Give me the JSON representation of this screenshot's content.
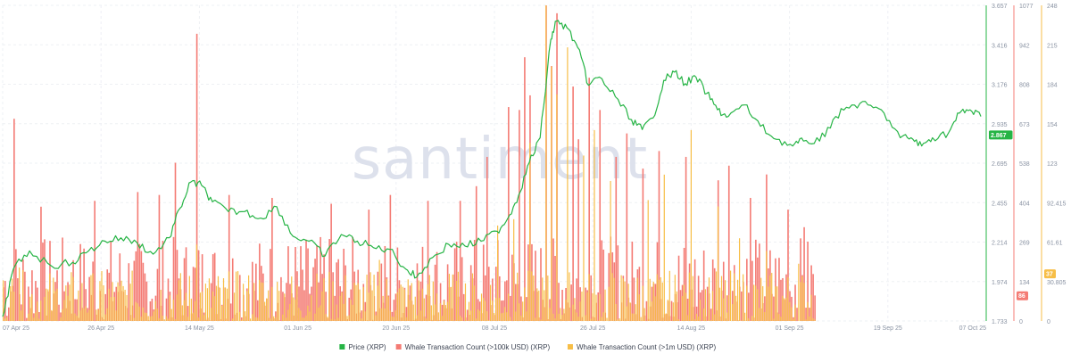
{
  "watermark": "santiment",
  "colors": {
    "price": "#26b445",
    "whale100k": "#f47b74",
    "whale1m": "#f7be47",
    "grid": "#eef0f4"
  },
  "chart_data": {
    "type": "bar+line",
    "x_range": [
      "2025-04-07",
      "2025-10-07"
    ],
    "x_ticks": [
      "07 Apr 25",
      "26 Apr 25",
      "14 May 25",
      "01 Jun 25",
      "20 Jun 25",
      "08 Jul 25",
      "26 Jul 25",
      "14 Aug 25",
      "01 Sep 25",
      "19 Sep 25",
      "07 Oct 25"
    ],
    "legend_position": "bottom-center",
    "grid": true,
    "axes": {
      "price": {
        "ticks": [
          "3.657",
          "3.416",
          "3.176",
          "2.935",
          "2.695",
          "2.455",
          "2.214",
          "1.974",
          "1.733"
        ],
        "range": [
          1.733,
          3.657
        ],
        "current_badge": "2.867"
      },
      "whale100k": {
        "ticks": [
          "1077",
          "942",
          "808",
          "673",
          "538",
          "404",
          "269",
          "134",
          "0"
        ],
        "range": [
          0,
          1077
        ],
        "current_badge": "86"
      },
      "whale1m": {
        "ticks": [
          "248",
          "215",
          "184",
          "154",
          "123",
          "92.415",
          "61.61",
          "30.805",
          "0"
        ],
        "range": [
          0,
          248
        ],
        "current_badge": "37"
      }
    },
    "series": [
      {
        "name": "Price (XRP)",
        "kind": "line",
        "axis": "price",
        "points": [
          [
            "2025-04-07",
            1.76
          ],
          [
            "2025-04-09",
            2.05
          ],
          [
            "2025-04-12",
            2.16
          ],
          [
            "2025-04-16",
            2.07
          ],
          [
            "2025-04-20",
            2.09
          ],
          [
            "2025-04-23",
            2.16
          ],
          [
            "2025-04-26",
            2.22
          ],
          [
            "2025-04-29",
            2.24
          ],
          [
            "2025-05-02",
            2.21
          ],
          [
            "2025-05-05",
            2.14
          ],
          [
            "2025-05-08",
            2.24
          ],
          [
            "2025-05-10",
            2.42
          ],
          [
            "2025-05-12",
            2.58
          ],
          [
            "2025-05-14",
            2.56
          ],
          [
            "2025-05-16",
            2.46
          ],
          [
            "2025-05-19",
            2.4
          ],
          [
            "2025-05-22",
            2.4
          ],
          [
            "2025-05-25",
            2.36
          ],
          [
            "2025-05-28",
            2.43
          ],
          [
            "2025-05-31",
            2.25
          ],
          [
            "2025-06-03",
            2.22
          ],
          [
            "2025-06-06",
            2.13
          ],
          [
            "2025-06-09",
            2.26
          ],
          [
            "2025-06-12",
            2.22
          ],
          [
            "2025-06-15",
            2.18
          ],
          [
            "2025-06-18",
            2.17
          ],
          [
            "2025-06-21",
            2.05
          ],
          [
            "2025-06-23",
            2.0
          ],
          [
            "2025-06-26",
            2.12
          ],
          [
            "2025-06-29",
            2.2
          ],
          [
            "2025-07-02",
            2.19
          ],
          [
            "2025-07-05",
            2.22
          ],
          [
            "2025-07-08",
            2.28
          ],
          [
            "2025-07-10",
            2.36
          ],
          [
            "2025-07-12",
            2.5
          ],
          [
            "2025-07-14",
            2.7
          ],
          [
            "2025-07-16",
            2.85
          ],
          [
            "2025-07-18",
            3.45
          ],
          [
            "2025-07-19",
            3.56
          ],
          [
            "2025-07-21",
            3.52
          ],
          [
            "2025-07-23",
            3.4
          ],
          [
            "2025-07-25",
            3.17
          ],
          [
            "2025-07-27",
            3.22
          ],
          [
            "2025-07-30",
            3.1
          ],
          [
            "2025-08-02",
            2.96
          ],
          [
            "2025-08-04",
            2.9
          ],
          [
            "2025-08-06",
            2.97
          ],
          [
            "2025-08-08",
            3.2
          ],
          [
            "2025-08-10",
            3.25
          ],
          [
            "2025-08-12",
            3.18
          ],
          [
            "2025-08-14",
            3.22
          ],
          [
            "2025-08-16",
            3.12
          ],
          [
            "2025-08-18",
            3.02
          ],
          [
            "2025-08-20",
            2.98
          ],
          [
            "2025-08-23",
            3.05
          ],
          [
            "2025-08-26",
            2.92
          ],
          [
            "2025-08-29",
            2.84
          ],
          [
            "2025-09-01",
            2.8
          ],
          [
            "2025-09-03",
            2.83
          ],
          [
            "2025-09-06",
            2.83
          ],
          [
            "2025-09-09",
            2.98
          ],
          [
            "2025-09-12",
            3.05
          ],
          [
            "2025-09-15",
            3.05
          ],
          [
            "2025-09-18",
            3.0
          ],
          [
            "2025-09-21",
            2.85
          ],
          [
            "2025-09-23",
            2.85
          ],
          [
            "2025-09-25",
            2.8
          ],
          [
            "2025-09-27",
            2.85
          ],
          [
            "2025-09-30",
            2.88
          ],
          [
            "2025-10-02",
            3.0
          ],
          [
            "2025-10-04",
            3.02
          ],
          [
            "2025-10-06",
            2.98
          ]
        ]
      },
      {
        "name": "Whale Transaction Count (>100k USD) (XRP)",
        "kind": "bar",
        "axis": "whale100k",
        "data_end": "2025-09-05",
        "baseline_range": [
          0,
          290
        ],
        "spikes": [
          [
            "2025-04-09",
            690
          ],
          [
            "2025-04-14",
            390
          ],
          [
            "2025-04-24",
            410
          ],
          [
            "2025-05-02",
            440
          ],
          [
            "2025-05-06",
            430
          ],
          [
            "2025-05-09",
            540
          ],
          [
            "2025-05-13",
            980
          ],
          [
            "2025-05-19",
            430
          ],
          [
            "2025-05-27",
            420
          ],
          [
            "2025-06-07",
            400
          ],
          [
            "2025-06-14",
            380
          ],
          [
            "2025-06-18",
            430
          ],
          [
            "2025-06-25",
            410
          ],
          [
            "2025-07-01",
            410
          ],
          [
            "2025-07-04",
            460
          ],
          [
            "2025-07-06",
            560
          ],
          [
            "2025-07-10",
            730
          ],
          [
            "2025-07-12",
            720
          ],
          [
            "2025-07-13",
            900
          ],
          [
            "2025-07-14",
            770
          ],
          [
            "2025-07-17",
            1077
          ],
          [
            "2025-07-18",
            870
          ],
          [
            "2025-07-19",
            1050
          ],
          [
            "2025-07-22",
            800
          ],
          [
            "2025-07-23",
            620
          ],
          [
            "2025-07-25",
            830
          ],
          [
            "2025-07-27",
            720
          ],
          [
            "2025-07-30",
            560
          ],
          [
            "2025-08-01",
            640
          ],
          [
            "2025-08-04",
            520
          ],
          [
            "2025-08-07",
            580
          ],
          [
            "2025-08-12",
            560
          ],
          [
            "2025-08-18",
            480
          ],
          [
            "2025-08-20",
            530
          ],
          [
            "2025-08-24",
            420
          ],
          [
            "2025-08-27",
            500
          ],
          [
            "2025-08-31",
            380
          ],
          [
            "2025-09-03",
            320
          ]
        ]
      },
      {
        "name": "Whale Transaction Count (>1m USD) (XRP)",
        "kind": "bar",
        "axis": "whale1m",
        "data_end": "2025-09-05",
        "baseline_range": [
          0,
          40
        ],
        "spikes": [
          [
            "2025-04-10",
            42
          ],
          [
            "2025-05-13",
            60
          ],
          [
            "2025-06-16",
            48
          ],
          [
            "2025-07-08",
            75
          ],
          [
            "2025-07-11",
            80
          ],
          [
            "2025-07-14",
            140
          ],
          [
            "2025-07-17",
            248
          ],
          [
            "2025-07-18",
            200
          ],
          [
            "2025-07-19",
            178
          ],
          [
            "2025-07-21",
            215
          ],
          [
            "2025-07-24",
            130
          ],
          [
            "2025-07-26",
            150
          ],
          [
            "2025-07-29",
            110
          ],
          [
            "2025-08-05",
            95
          ],
          [
            "2025-08-08",
            115
          ],
          [
            "2025-08-13",
            150
          ],
          [
            "2025-08-18",
            90
          ],
          [
            "2025-08-22",
            65
          ],
          [
            "2025-08-27",
            55
          ],
          [
            "2025-09-02",
            45
          ]
        ]
      }
    ]
  }
}
